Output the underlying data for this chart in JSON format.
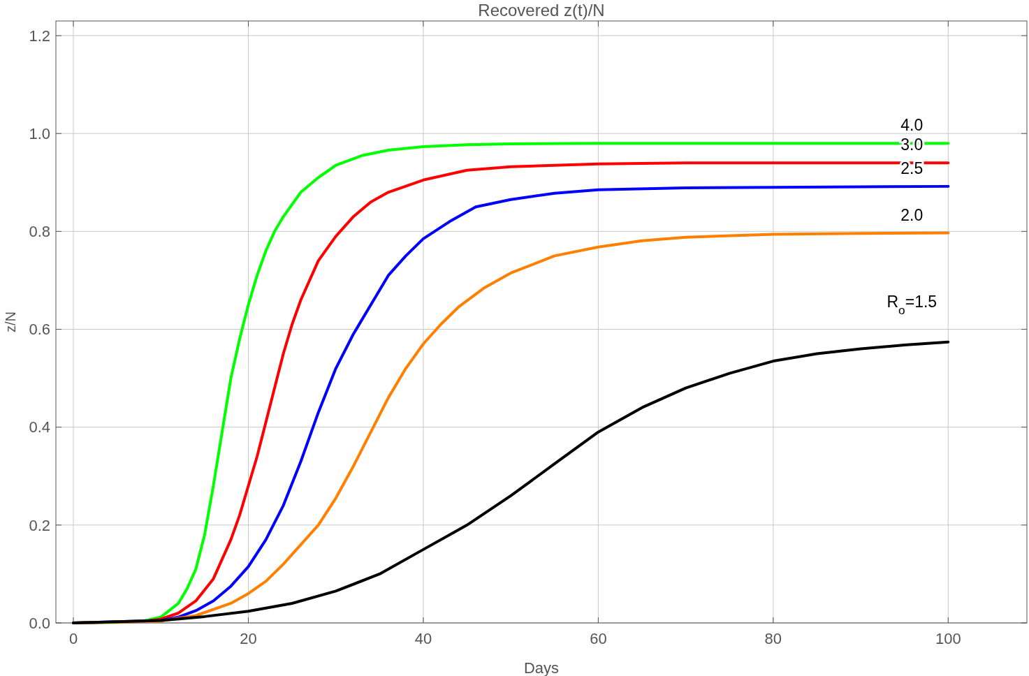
{
  "chart_data": {
    "type": "line",
    "title": "Recovered z(t)/N",
    "xlabel": "Days",
    "ylabel": "z/N",
    "xlim": [
      -2,
      109
    ],
    "ylim": [
      0,
      1.23
    ],
    "xticks": [
      0,
      20,
      40,
      60,
      80,
      100
    ],
    "yticks": [
      {
        "value": 0,
        "label": "0.0"
      },
      {
        "value": 0.2,
        "label": "0.2"
      },
      {
        "value": 0.4,
        "label": "0.4"
      },
      {
        "value": 0.6,
        "label": "0.6"
      },
      {
        "value": 0.8,
        "label": "0.8"
      },
      {
        "value": 1,
        "label": "1.0"
      },
      {
        "value": 1.2,
        "label": "1.2"
      }
    ],
    "grid": true,
    "marker": "none",
    "line_style": "solid",
    "series": [
      {
        "color": "#00ff00",
        "x": [
          0,
          5,
          8,
          10,
          12,
          13,
          14,
          15,
          16,
          17,
          18,
          19,
          20,
          21,
          22,
          23,
          24,
          26,
          28,
          30,
          33,
          36,
          40,
          45,
          50,
          60,
          100
        ],
        "values": [
          0,
          0.001,
          0.004,
          0.012,
          0.04,
          0.07,
          0.11,
          0.18,
          0.28,
          0.39,
          0.5,
          0.58,
          0.65,
          0.71,
          0.76,
          0.8,
          0.83,
          0.88,
          0.91,
          0.935,
          0.955,
          0.966,
          0.973,
          0.977,
          0.979,
          0.98,
          0.98
        ]
      },
      {
        "color": "#ff0000",
        "x": [
          0,
          8,
          10,
          12,
          14,
          16,
          17,
          18,
          19,
          20,
          21,
          22,
          23,
          24,
          25,
          26,
          28,
          30,
          32,
          34,
          36,
          40,
          45,
          50,
          60,
          70,
          100
        ],
        "values": [
          0,
          0.003,
          0.008,
          0.02,
          0.045,
          0.09,
          0.13,
          0.17,
          0.22,
          0.28,
          0.34,
          0.41,
          0.48,
          0.55,
          0.61,
          0.66,
          0.74,
          0.79,
          0.83,
          0.86,
          0.88,
          0.905,
          0.925,
          0.932,
          0.938,
          0.94,
          0.94
        ]
      },
      {
        "color": "#0000ff",
        "x": [
          0,
          10,
          12,
          14,
          16,
          18,
          20,
          22,
          24,
          26,
          28,
          30,
          32,
          34,
          36,
          38,
          40,
          43,
          46,
          50,
          55,
          60,
          70,
          80,
          100
        ],
        "values": [
          0,
          0.005,
          0.012,
          0.025,
          0.045,
          0.075,
          0.115,
          0.17,
          0.24,
          0.33,
          0.43,
          0.52,
          0.59,
          0.65,
          0.71,
          0.75,
          0.785,
          0.82,
          0.85,
          0.865,
          0.878,
          0.885,
          0.889,
          0.89,
          0.892
        ]
      },
      {
        "color": "#ff8000",
        "x": [
          0,
          10,
          14,
          18,
          20,
          22,
          24,
          26,
          28,
          30,
          32,
          34,
          36,
          38,
          40,
          42,
          44,
          47,
          50,
          55,
          60,
          65,
          70,
          80,
          90,
          100
        ],
        "values": [
          0,
          0.004,
          0.015,
          0.04,
          0.06,
          0.085,
          0.12,
          0.16,
          0.2,
          0.255,
          0.32,
          0.39,
          0.46,
          0.52,
          0.57,
          0.61,
          0.645,
          0.685,
          0.715,
          0.75,
          0.768,
          0.781,
          0.788,
          0.794,
          0.796,
          0.797
        ]
      },
      {
        "color": "#000000",
        "x": [
          0,
          10,
          15,
          20,
          25,
          30,
          35,
          40,
          45,
          50,
          55,
          60,
          65,
          70,
          75,
          80,
          85,
          90,
          95,
          100
        ],
        "values": [
          0,
          0.005,
          0.013,
          0.024,
          0.04,
          0.065,
          0.1,
          0.15,
          0.2,
          0.26,
          0.325,
          0.39,
          0.44,
          0.48,
          0.51,
          0.535,
          0.55,
          0.56,
          0.568,
          0.574
        ]
      }
    ],
    "annotations": [
      "4.0",
      "3.0",
      "2.5",
      "2.0",
      "R$_{o}$=1.5"
    ]
  }
}
